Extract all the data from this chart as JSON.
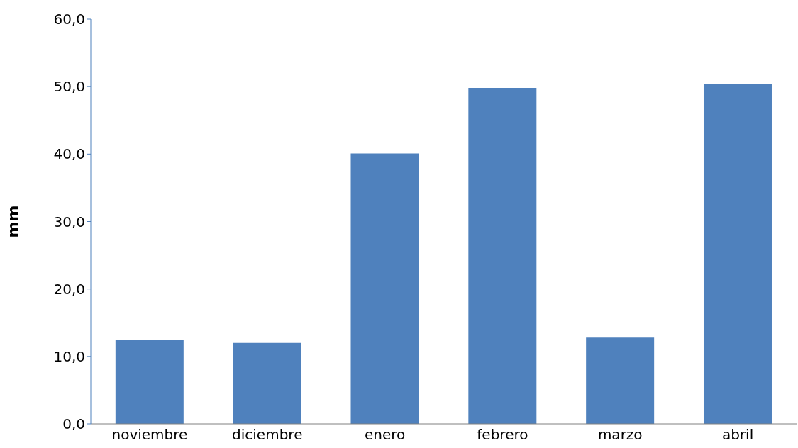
{
  "chart_data": {
    "type": "bar",
    "ylabel": "mm",
    "categories": [
      "noviembre",
      "diciembre",
      "enero",
      "febrero",
      "marzo",
      "abril"
    ],
    "values": [
      12.5,
      12.0,
      40.1,
      49.8,
      12.8,
      50.4
    ],
    "color": "#4f81bd",
    "ylim": [
      0,
      60
    ],
    "yticks": [
      {
        "value": 0,
        "label": "0,0"
      },
      {
        "value": 10,
        "label": "10,0"
      },
      {
        "value": 20,
        "label": "20,0"
      },
      {
        "value": 30,
        "label": "30,0"
      },
      {
        "value": 40,
        "label": "40,0"
      },
      {
        "value": 50,
        "label": "50,0"
      },
      {
        "value": 60,
        "label": "60,0"
      }
    ],
    "grid": false,
    "legend": false
  }
}
